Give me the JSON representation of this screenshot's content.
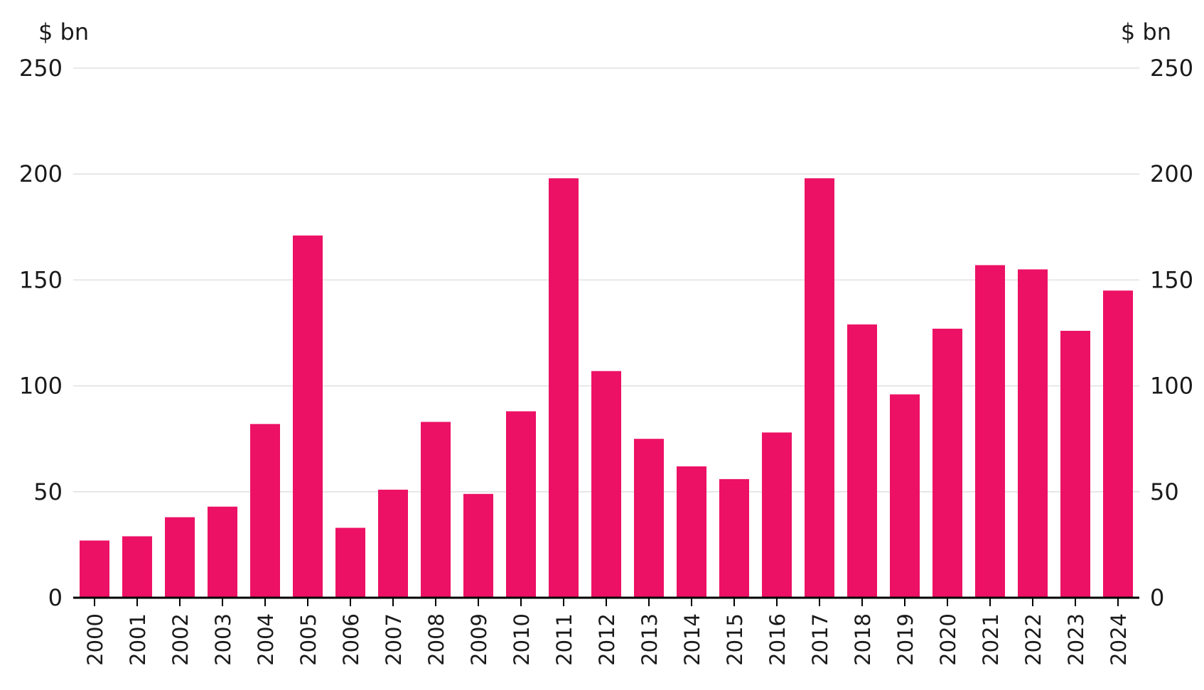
{
  "chart_data": {
    "type": "bar",
    "title": "",
    "xlabel": "",
    "ylabel": "$ bn",
    "ylabel_right": "$ bn",
    "ylim": [
      0,
      250
    ],
    "yticks": [
      0,
      50,
      100,
      150,
      200,
      250
    ],
    "grid": true,
    "bar_color": "#ec1164",
    "categories": [
      "2000",
      "2001",
      "2002",
      "2003",
      "2004",
      "2005",
      "2006",
      "2007",
      "2008",
      "2009",
      "2010",
      "2011",
      "2012",
      "2013",
      "2014",
      "2015",
      "2016",
      "2017",
      "2018",
      "2019",
      "2020",
      "2021",
      "2022",
      "2023",
      "2024"
    ],
    "values": [
      27,
      29,
      38,
      43,
      82,
      171,
      33,
      51,
      83,
      49,
      88,
      198,
      107,
      75,
      62,
      56,
      78,
      198,
      129,
      96,
      127,
      157,
      155,
      126,
      145
    ]
  }
}
